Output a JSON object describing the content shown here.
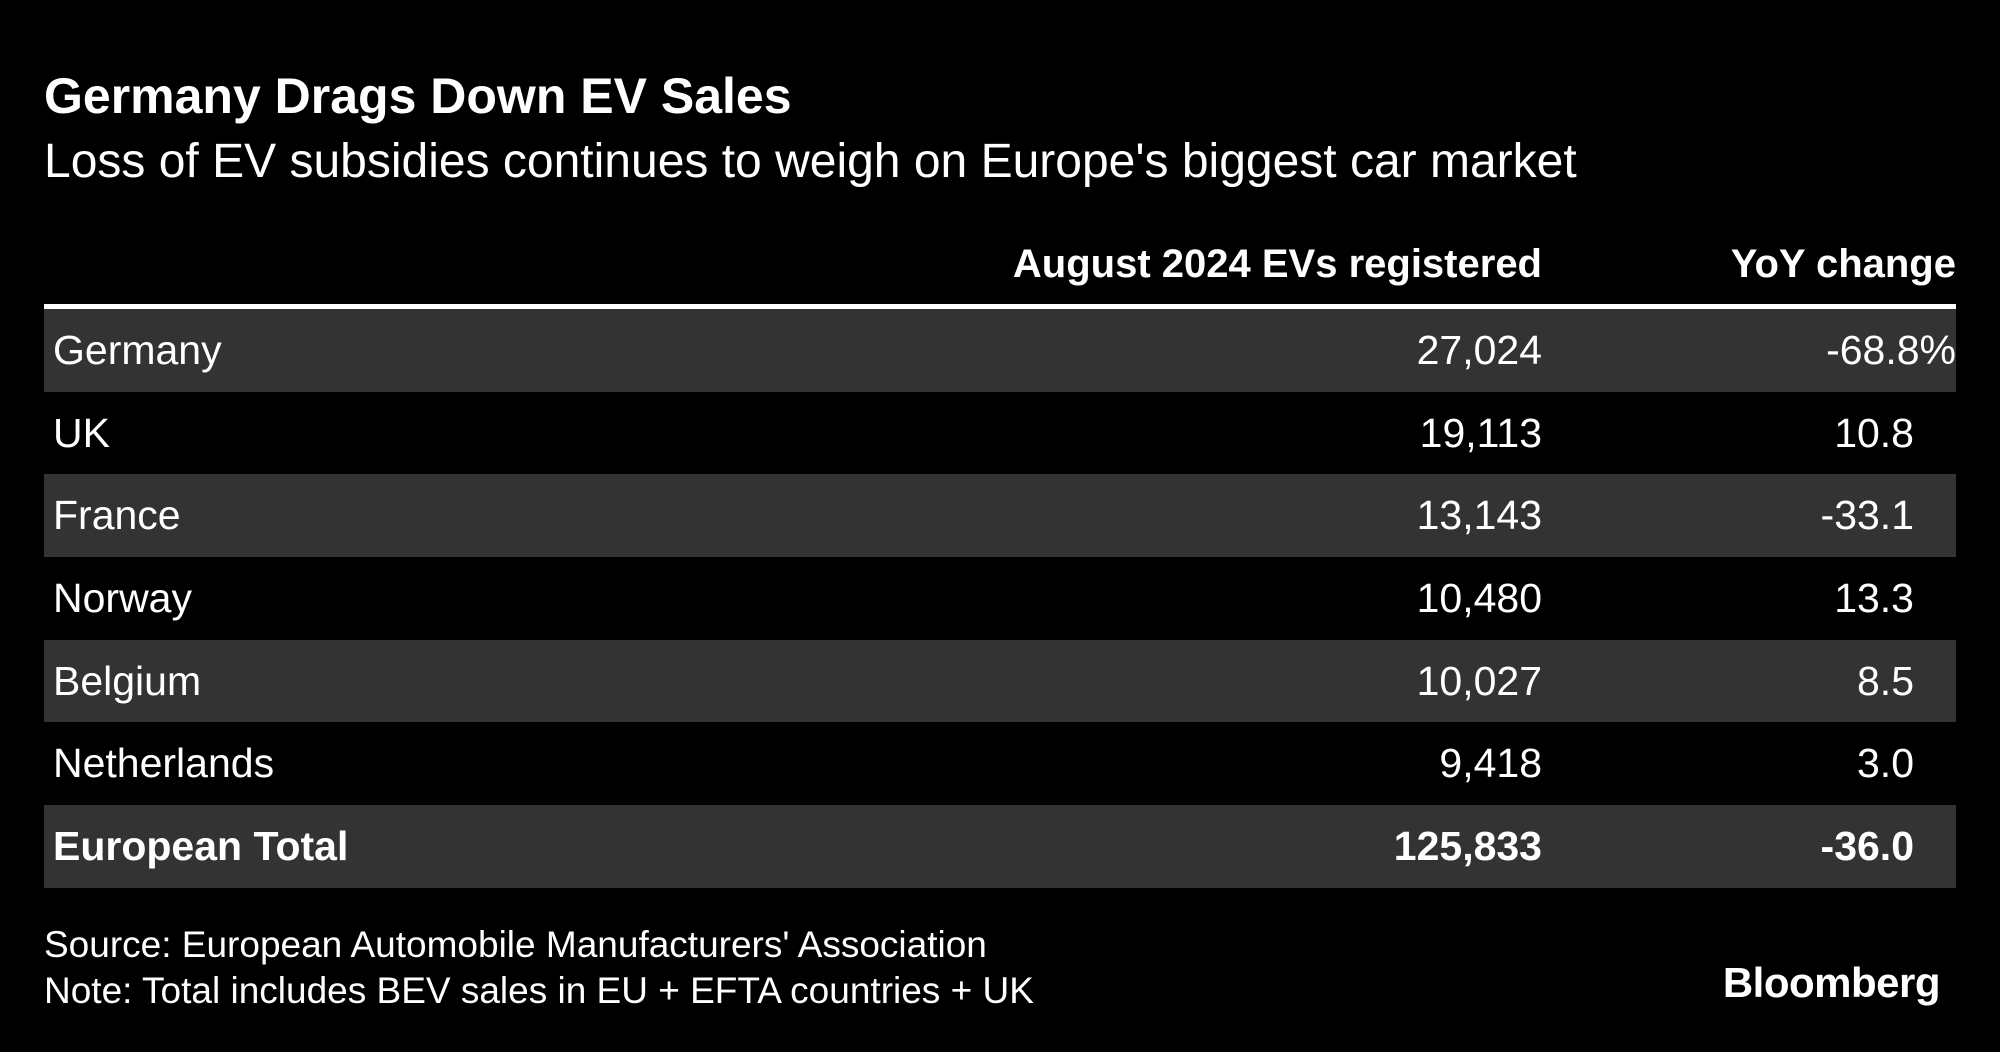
{
  "chart_data": {
    "type": "table",
    "title": "Germany Drags Down EV Sales",
    "subtitle": "Loss of EV subsidies continues to weigh on Europe's biggest car market",
    "columns": [
      "",
      "August 2024 EVs registered",
      "YoY change"
    ],
    "rows": [
      {
        "country": "Germany",
        "registered": "27,024",
        "yoy": "-68.8%"
      },
      {
        "country": "UK",
        "registered": "19,113",
        "yoy": "10.8"
      },
      {
        "country": "France",
        "registered": "13,143",
        "yoy": "-33.1"
      },
      {
        "country": "Norway",
        "registered": "10,480",
        "yoy": "13.3"
      },
      {
        "country": "Belgium",
        "registered": "10,027",
        "yoy": "8.5"
      },
      {
        "country": "Netherlands",
        "registered": "9,418",
        "yoy": "3.0"
      }
    ],
    "total": {
      "country": "European Total",
      "registered": "125,833",
      "yoy": "-36.0"
    },
    "source": "Source: European Automobile Manufacturers' Association",
    "note": "Note: Total includes BEV sales in EU + EFTA countries + UK",
    "logo": "Bloomberg"
  },
  "colors": {
    "background": "#000000",
    "text": "#ffffff",
    "shaded_row": "#333333",
    "rule": "#ffffff"
  }
}
